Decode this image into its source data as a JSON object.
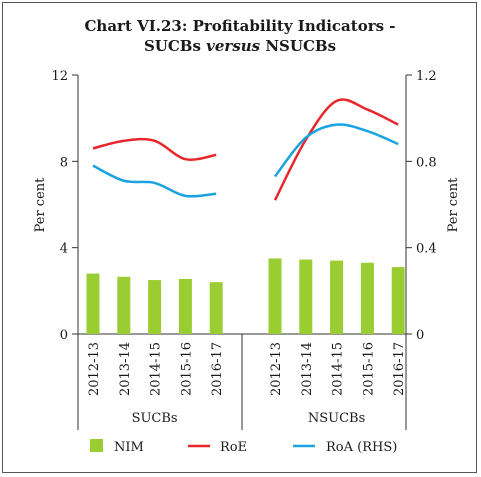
{
  "chart_data": {
    "type": "bar",
    "title_line1": "Chart VI.23: Profitability Indicators -",
    "title_line2_a": "SUCBs ",
    "title_line2_b": "versus",
    "title_line2_c": " NSUCBs",
    "ylabel_left": "Per cent",
    "ylabel_right": "Per cent",
    "ylim_left": [
      0,
      12
    ],
    "ylim_right": [
      0,
      1.2
    ],
    "yticks_left": [
      "0",
      "4",
      "8",
      "12"
    ],
    "yticks_right": [
      "0",
      "0.4",
      "0.8",
      "1.2"
    ],
    "groups": [
      {
        "name": "SUCBs",
        "categories": [
          "2012-13",
          "2013-14",
          "2014-15",
          "2015-16",
          "2016-17"
        ],
        "NIM": [
          2.8,
          2.65,
          2.5,
          2.55,
          2.4
        ],
        "RoE": [
          8.6,
          8.95,
          8.95,
          8.1,
          8.3
        ],
        "RoA": [
          0.78,
          0.71,
          0.7,
          0.64,
          0.65
        ]
      },
      {
        "name": "NSUCBs",
        "categories": [
          "2012-13",
          "2013-14",
          "2014-15",
          "2015-16",
          "2016-17"
        ],
        "NIM": [
          3.5,
          3.45,
          3.4,
          3.3,
          3.1
        ],
        "RoE": [
          6.2,
          9.0,
          10.8,
          10.4,
          9.7
        ],
        "RoA": [
          0.73,
          0.91,
          0.97,
          0.94,
          0.88
        ]
      }
    ],
    "legend": [
      {
        "name": "NIM",
        "color": "#9acd32",
        "kind": "bar"
      },
      {
        "name": "RoE",
        "color": "#e8262c",
        "kind": "line"
      },
      {
        "name": "RoA (RHS)",
        "color": "#1aa3e0",
        "kind": "line"
      }
    ],
    "grid": false,
    "legend_position": "bottom"
  }
}
